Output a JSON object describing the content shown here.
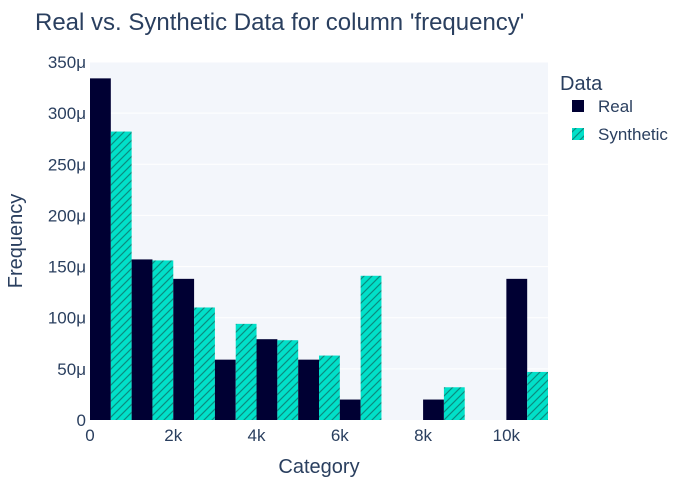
{
  "chart_data": {
    "type": "bar",
    "title": "Real vs. Synthetic Data for column 'frequency'",
    "xlabel": "Category",
    "ylabel": "Frequency",
    "xlim": [
      0,
      11000
    ],
    "ylim": [
      0,
      0.00035
    ],
    "bin_width": 1000,
    "bin_starts": [
      0,
      1000,
      2000,
      3000,
      4000,
      5000,
      6000,
      7000,
      8000,
      9000,
      10000
    ],
    "x_ticks": [
      {
        "value": 0,
        "label": "0"
      },
      {
        "value": 2000,
        "label": "2k"
      },
      {
        "value": 4000,
        "label": "4k"
      },
      {
        "value": 6000,
        "label": "6k"
      },
      {
        "value": 8000,
        "label": "8k"
      },
      {
        "value": 10000,
        "label": "10k"
      }
    ],
    "y_ticks": [
      {
        "value": 0,
        "label": "0"
      },
      {
        "value": 5e-05,
        "label": "50μ"
      },
      {
        "value": 0.0001,
        "label": "100μ"
      },
      {
        "value": 0.00015,
        "label": "150μ"
      },
      {
        "value": 0.0002,
        "label": "200μ"
      },
      {
        "value": 0.00025,
        "label": "250μ"
      },
      {
        "value": 0.0003,
        "label": "300μ"
      },
      {
        "value": 0.00035,
        "label": "350μ"
      }
    ],
    "grid": true,
    "legend": {
      "title": "Data",
      "placement": "top-right"
    },
    "series": [
      {
        "name": "Real",
        "color": "#000033",
        "pattern": "solid",
        "values": [
          0.000334,
          0.000157,
          0.000138,
          5.9e-05,
          7.9e-05,
          5.9e-05,
          2e-05,
          0,
          2e-05,
          0,
          0.000138
        ]
      },
      {
        "name": "Synthetic",
        "color": "#01e0c9",
        "pattern": "diagonal-hatch",
        "values": [
          0.000282,
          0.000156,
          0.00011,
          9.4e-05,
          7.8e-05,
          6.3e-05,
          0.000141,
          0,
          3.2e-05,
          0,
          4.7e-05
        ]
      }
    ]
  }
}
